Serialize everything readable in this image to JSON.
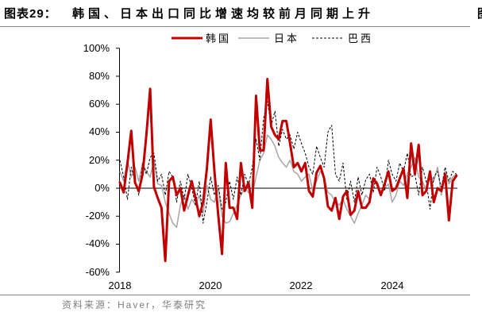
{
  "figure": {
    "label": "图表29：",
    "title": "韩国、日本出口同比增速均较前月同期上升",
    "source": "资料来源：Haver，华泰研究",
    "next_figure_fragment": "图"
  },
  "chart_data": {
    "type": "line",
    "legend": "top",
    "grid": false,
    "zero_line": true,
    "ylim": [
      -60,
      100
    ],
    "ytick_labels": [
      "100%",
      "80%",
      "60%",
      "40%",
      "20%",
      "0%",
      "-20%",
      "-40%",
      "-60%"
    ],
    "xtick_labels": [
      "2018",
      "2020",
      "2022",
      "2024"
    ],
    "x": [
      "2018-01",
      "2018-02",
      "2018-03",
      "2018-04",
      "2018-05",
      "2018-06",
      "2018-07",
      "2018-08",
      "2018-09",
      "2018-10",
      "2018-11",
      "2018-12",
      "2019-01",
      "2019-02",
      "2019-03",
      "2019-04",
      "2019-05",
      "2019-06",
      "2019-07",
      "2019-08",
      "2019-09",
      "2019-10",
      "2019-11",
      "2019-12",
      "2020-01",
      "2020-02",
      "2020-03",
      "2020-04",
      "2020-05",
      "2020-06",
      "2020-07",
      "2020-08",
      "2020-09",
      "2020-10",
      "2020-11",
      "2020-12",
      "2021-01",
      "2021-02",
      "2021-03",
      "2021-04",
      "2021-05",
      "2021-06",
      "2021-07",
      "2021-08",
      "2021-09",
      "2021-10",
      "2021-11",
      "2021-12",
      "2022-01",
      "2022-02",
      "2022-03",
      "2022-04",
      "2022-05",
      "2022-06",
      "2022-07",
      "2022-08",
      "2022-09",
      "2022-10",
      "2022-11",
      "2022-12",
      "2023-01",
      "2023-02",
      "2023-03",
      "2023-04",
      "2023-05",
      "2023-06",
      "2023-07",
      "2023-08",
      "2023-09",
      "2023-10",
      "2023-11",
      "2023-12",
      "2024-01",
      "2024-02",
      "2024-03",
      "2024-04",
      "2024-05",
      "2024-06",
      "2024-07",
      "2024-08",
      "2024-09",
      "2024-10",
      "2024-11",
      "2024-12",
      "2025-01",
      "2025-02",
      "2025-03",
      "2025-04",
      "2025-05",
      "2025-06"
    ],
    "series": [
      {
        "name": "韩国",
        "color": "#C00000",
        "style": "solid",
        "values": [
          4,
          -3,
          18,
          41,
          4,
          -2,
          10,
          38,
          71,
          1,
          -7,
          -14,
          -52,
          5,
          8,
          -5,
          0,
          -16,
          -5,
          5,
          -7,
          -20,
          -10,
          14,
          49,
          12,
          -19,
          -47,
          18,
          -14,
          -14,
          -22,
          18,
          -2,
          4,
          -14,
          66,
          27,
          27,
          78,
          44,
          38,
          35,
          48,
          48,
          32,
          15,
          18,
          12,
          18,
          -2,
          -6,
          11,
          16,
          7,
          -13,
          -16,
          -7,
          -22,
          -6,
          -2,
          -19,
          -16,
          -2,
          -14,
          -14,
          -10,
          7,
          3,
          -5,
          3,
          12,
          -2,
          0,
          7,
          14,
          -7,
          32,
          10,
          31,
          -5,
          -2,
          12,
          -10,
          0,
          -2,
          10,
          -23,
          5,
          9
        ]
      },
      {
        "name": "日本",
        "color": "#A6A6A6",
        "style": "solid",
        "values": [
          12,
          5,
          20,
          8,
          15,
          5,
          18,
          12,
          8,
          20,
          3,
          2,
          -10,
          -18,
          -25,
          -28,
          -12,
          -5,
          -15,
          -8,
          -12,
          -5,
          -18,
          2,
          -8,
          -10,
          0,
          -20,
          -25,
          -24,
          -18,
          -12,
          -5,
          0,
          -3,
          -5,
          8,
          20,
          25,
          38,
          35,
          30,
          22,
          18,
          15,
          20,
          12,
          10,
          5,
          8,
          10,
          -2,
          5,
          12,
          8,
          -3,
          -5,
          -10,
          -12,
          -8,
          -15,
          -20,
          -25,
          -18,
          -12,
          -5,
          -8,
          2,
          5,
          -3,
          0,
          3,
          -10,
          -5,
          5,
          2,
          10,
          15,
          22,
          8,
          5,
          -2,
          10,
          5,
          15,
          -5,
          12,
          3,
          8,
          10
        ]
      },
      {
        "name": "巴西",
        "color": "#000000",
        "style": "dashed",
        "values": [
          20,
          8,
          -8,
          15,
          5,
          -5,
          18,
          10,
          22,
          25,
          5,
          10,
          -5,
          12,
          8,
          -10,
          5,
          -8,
          10,
          0,
          -12,
          5,
          -25,
          -10,
          8,
          -5,
          2,
          -15,
          -10,
          5,
          -8,
          8,
          -5,
          10,
          2,
          15,
          35,
          20,
          50,
          62,
          45,
          55,
          30,
          42,
          35,
          38,
          28,
          40,
          32,
          25,
          15,
          10,
          30,
          22,
          15,
          40,
          45,
          10,
          5,
          18,
          -8,
          5,
          -10,
          8,
          -5,
          6,
          10,
          -3,
          15,
          8,
          -2,
          20,
          10,
          5,
          18,
          12,
          25,
          8,
          10,
          -5,
          15,
          5,
          -15,
          8,
          12,
          0,
          15,
          5,
          12,
          10
        ]
      }
    ]
  }
}
